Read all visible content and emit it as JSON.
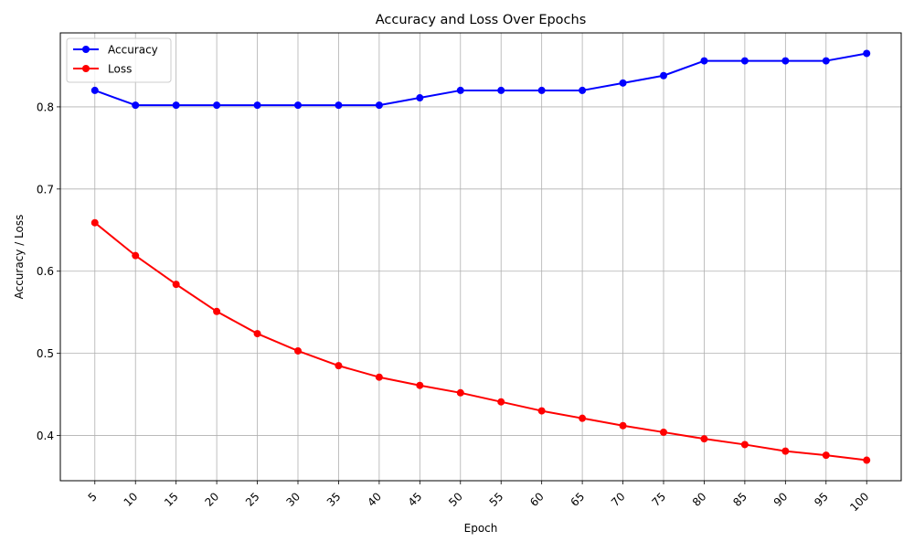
{
  "chart_data": {
    "type": "line",
    "title": "Accuracy and Loss Over Epochs",
    "xlabel": "Epoch",
    "ylabel": "Accuracy / Loss",
    "x": [
      5,
      10,
      15,
      20,
      25,
      30,
      35,
      40,
      45,
      50,
      55,
      60,
      65,
      70,
      75,
      80,
      85,
      90,
      95,
      100
    ],
    "xticks": [
      "5",
      "10",
      "15",
      "20",
      "25",
      "30",
      "35",
      "40",
      "45",
      "50",
      "55",
      "60",
      "65",
      "70",
      "75",
      "80",
      "85",
      "90",
      "95",
      "100"
    ],
    "xtick_rotation": 45,
    "yticks": [
      0.4,
      0.5,
      0.6,
      0.7,
      0.8
    ],
    "ytick_labels": [
      "0.4",
      "0.5",
      "0.6",
      "0.7",
      "0.8"
    ],
    "xlim": [
      0.75,
      104.25
    ],
    "ylim": [
      0.345,
      0.89
    ],
    "grid": true,
    "legend_position": "upper-left",
    "series": [
      {
        "name": "Accuracy",
        "color": "#0000ff",
        "marker": "circle",
        "values": [
          0.82,
          0.802,
          0.802,
          0.802,
          0.802,
          0.802,
          0.802,
          0.802,
          0.811,
          0.82,
          0.82,
          0.82,
          0.82,
          0.829,
          0.838,
          0.856,
          0.856,
          0.856,
          0.856,
          0.865
        ]
      },
      {
        "name": "Loss",
        "color": "#ff0000",
        "marker": "circle",
        "values": [
          0.659,
          0.619,
          0.584,
          0.551,
          0.524,
          0.503,
          0.485,
          0.471,
          0.461,
          0.452,
          0.441,
          0.43,
          0.421,
          0.412,
          0.404,
          0.396,
          0.389,
          0.381,
          0.376,
          0.37
        ]
      }
    ]
  }
}
